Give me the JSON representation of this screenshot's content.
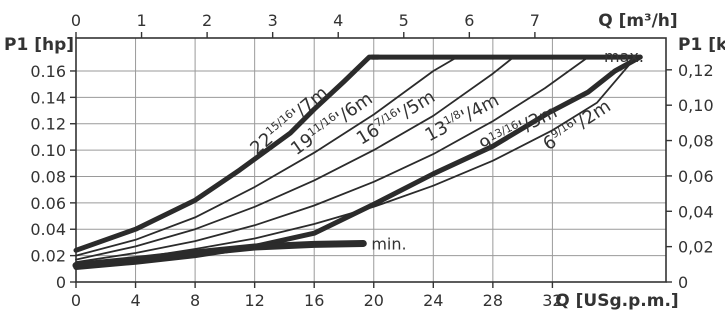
{
  "chart_data": {
    "type": "line",
    "axes": {
      "x_bottom": {
        "label": "Q [USg.p.m.]",
        "ticks": [
          0,
          4,
          8,
          12,
          16,
          20,
          24,
          28,
          32
        ],
        "range": [
          0,
          39.63
        ]
      },
      "x_top": {
        "label": "Q [m³/h]",
        "ticks": [
          0,
          1,
          2,
          3,
          4,
          5,
          6,
          7
        ],
        "range": [
          0,
          9
        ]
      },
      "y_left": {
        "label": "P1 [hp]",
        "ticks": [
          0,
          0.02,
          0.04,
          0.06,
          0.08,
          0.1,
          0.12,
          0.14,
          0.16
        ],
        "tick_labels": [
          "0",
          "0.02",
          "0.04",
          "0.06",
          "0.08",
          "0.10",
          "0.12",
          "0.14",
          "0.16"
        ],
        "range": [
          0,
          0.185
        ]
      },
      "y_right": {
        "label": "P1 [kW]",
        "ticks": [
          0,
          0.02,
          0.04,
          0.06,
          0.08,
          0.1,
          0.12
        ],
        "tick_labels": [
          "0",
          "0,02",
          "0,04",
          "0,06",
          "0,08",
          "0,10",
          "0,12"
        ],
        "range": [
          0,
          0.138
        ]
      }
    },
    "grid": true,
    "series": [
      {
        "name": "22 15/16'/7m",
        "label_main": "22",
        "label_sup": "15/16",
        "label_tail": "'/7m",
        "bold": true,
        "points": [
          [
            0,
            0.024
          ],
          [
            4,
            0.04
          ],
          [
            8,
            0.062
          ],
          [
            11,
            0.085
          ],
          [
            14.4,
            0.113
          ],
          [
            16,
            0.131
          ],
          [
            18,
            0.152
          ],
          [
            19.7,
            0.1705
          ],
          [
            20.3,
            0.1705
          ]
        ]
      },
      {
        "name": "19 11/16'/6m",
        "label_main": "19",
        "label_sup": "11/16",
        "label_tail": "'/6m",
        "bold": false,
        "points": [
          [
            0,
            0.02
          ],
          [
            4,
            0.032
          ],
          [
            8,
            0.049
          ],
          [
            12,
            0.072
          ],
          [
            16,
            0.098
          ],
          [
            20,
            0.127
          ],
          [
            24,
            0.16
          ],
          [
            25.6,
            0.1705
          ]
        ]
      },
      {
        "name": "16 7/16'/5m",
        "label_main": "16",
        "label_sup": "7/16",
        "label_tail": "'/5m",
        "bold": false,
        "points": [
          [
            0,
            0.017
          ],
          [
            4,
            0.027
          ],
          [
            8,
            0.04
          ],
          [
            12,
            0.057
          ],
          [
            16,
            0.077
          ],
          [
            20,
            0.1
          ],
          [
            24,
            0.126
          ],
          [
            28,
            0.158
          ],
          [
            29.4,
            0.1705
          ]
        ]
      },
      {
        "name": "13 1/8'/4m",
        "label_main": "13",
        "label_sup": "1/8",
        "label_tail": "'/4m",
        "bold": false,
        "points": [
          [
            0,
            0.015
          ],
          [
            4,
            0.022
          ],
          [
            8,
            0.031
          ],
          [
            12,
            0.043
          ],
          [
            16,
            0.058
          ],
          [
            20,
            0.076
          ],
          [
            24,
            0.097
          ],
          [
            28,
            0.122
          ],
          [
            31.5,
            0.147
          ],
          [
            34.4,
            0.1705
          ]
        ]
      },
      {
        "name": "9 13/16'/3m",
        "label_main": "9",
        "label_sup": "13/16",
        "label_tail": "'/3m",
        "bold": false,
        "points": [
          [
            0,
            0.013
          ],
          [
            4,
            0.018
          ],
          [
            8,
            0.025
          ],
          [
            12,
            0.033
          ],
          [
            16,
            0.044
          ],
          [
            20,
            0.057
          ],
          [
            24,
            0.073
          ],
          [
            28,
            0.092
          ],
          [
            32,
            0.115
          ],
          [
            35,
            0.136
          ],
          [
            37.6,
            0.1705
          ]
        ]
      },
      {
        "name": "6 9/16'/2m",
        "label_main": "6",
        "label_sup": "9/16",
        "label_tail": "'/2m",
        "bold": true,
        "points": [
          [
            0,
            0.011
          ],
          [
            4,
            0.015
          ],
          [
            8,
            0.02
          ],
          [
            12,
            0.027
          ],
          [
            16,
            0.037
          ],
          [
            20,
            0.059
          ],
          [
            24,
            0.082
          ],
          [
            28,
            0.103
          ],
          [
            31.7,
            0.128
          ],
          [
            34.4,
            0.144
          ],
          [
            36.2,
            0.16
          ],
          [
            37.9,
            0.1705
          ]
        ]
      },
      {
        "name": "max.",
        "bold": true,
        "points": [
          [
            19.9,
            0.1705
          ],
          [
            37.9,
            0.1705
          ]
        ]
      },
      {
        "name": "min.",
        "bold": true,
        "points": [
          [
            0,
            0.0125
          ],
          [
            4,
            0.017
          ],
          [
            8,
            0.022
          ],
          [
            12,
            0.0265
          ],
          [
            16,
            0.0285
          ],
          [
            19.3,
            0.0292
          ]
        ]
      }
    ],
    "max_label": "max.",
    "min_label": "min."
  }
}
